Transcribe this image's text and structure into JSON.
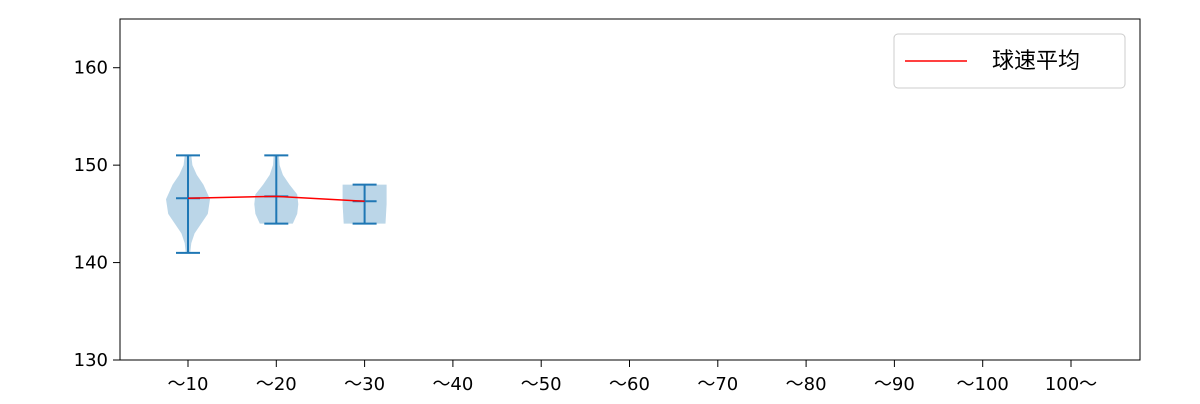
{
  "chart_data": {
    "type": "violin",
    "categories": [
      "～10",
      "～20",
      "～30",
      "～40",
      "～50",
      "～60",
      "～70",
      "～80",
      "～90",
      "～100",
      "100～"
    ],
    "ylim": [
      130,
      165
    ],
    "yticks": [
      130,
      140,
      150,
      160
    ],
    "grid": false,
    "legend": {
      "placement": "top-right",
      "entries": [
        {
          "label": "球速平均",
          "color": "#ff0000"
        }
      ]
    },
    "violin_color": "#1f77b4",
    "violins": [
      {
        "category": "～10",
        "min": 141,
        "max": 151,
        "mean": 146.6,
        "density": [
          [
            141,
            0.1
          ],
          [
            142,
            0.15
          ],
          [
            143,
            0.3
          ],
          [
            144,
            0.6
          ],
          [
            145,
            0.9
          ],
          [
            146.5,
            1.0
          ],
          [
            148,
            0.7
          ],
          [
            149,
            0.4
          ],
          [
            150,
            0.2
          ],
          [
            151,
            0.15
          ]
        ]
      },
      {
        "category": "～20",
        "min": 144,
        "max": 151,
        "mean": 146.8,
        "density": [
          [
            144,
            0.75
          ],
          [
            145,
            0.95
          ],
          [
            146,
            1.0
          ],
          [
            147,
            0.95
          ],
          [
            148,
            0.6
          ],
          [
            149,
            0.3
          ],
          [
            150,
            0.15
          ],
          [
            151,
            0.12
          ]
        ]
      },
      {
        "category": "～30",
        "min": 144,
        "max": 148,
        "mean": 146.3,
        "density": [
          [
            144,
            0.95
          ],
          [
            146,
            1.0
          ],
          [
            148,
            1.0
          ]
        ]
      }
    ],
    "mean_line": {
      "name": "球速平均",
      "color": "#ff0000",
      "values": [
        146.6,
        146.8,
        146.3
      ]
    }
  }
}
